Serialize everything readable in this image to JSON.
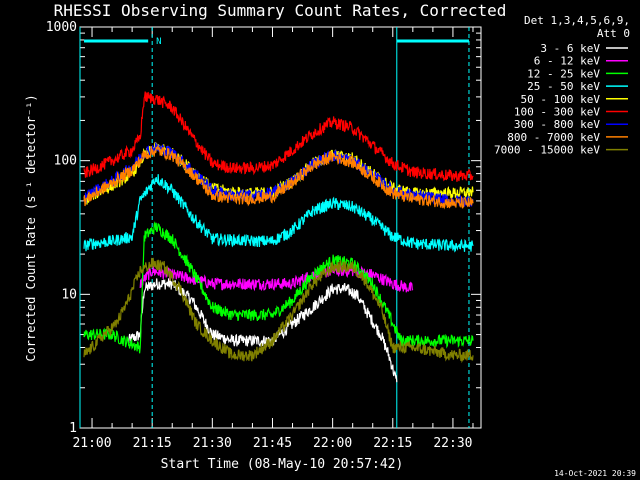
{
  "chart_data": {
    "type": "line",
    "title": "RHESSI Observing Summary Count Rates, Corrected",
    "xlabel": "Start Time (08-May-10 20:57:42)",
    "ylabel": "Corrected Count Rate (s⁻¹ detector⁻¹)",
    "footer": "14-Oct-2021 20:39",
    "y_scale": "log",
    "ylim": [
      1,
      1000
    ],
    "y_ticks": [
      {
        "value": 1,
        "label": "1"
      },
      {
        "value": 10,
        "label": "10"
      },
      {
        "value": 100,
        "label": "100"
      },
      {
        "value": 1000,
        "label": "1000"
      }
    ],
    "xlim": [
      "20:57",
      "22:37"
    ],
    "x_ticks": [
      "21:00",
      "21:15",
      "21:30",
      "21:45",
      "22:00",
      "22:15",
      "22:30"
    ],
    "legend_position": "right",
    "legend_header": [
      "Det 1,3,4,5,6,9,",
      "Att 0"
    ],
    "markers": {
      "cyan_solid": [
        "20:57",
        "22:16"
      ],
      "cyan_dashed": [
        "21:15",
        "22:34"
      ],
      "flag_bars": [
        {
          "from": "20:58",
          "to": "21:14",
          "label": "N"
        },
        {
          "from": "22:16",
          "to": "22:34",
          "label": ""
        }
      ]
    },
    "series": [
      {
        "name": "3 - 6 keV",
        "color": "#ffffff",
        "points": [
          [
            "21:09",
            4.5
          ],
          [
            "21:12",
            5
          ],
          [
            "21:13",
            11
          ],
          [
            "21:16",
            12
          ],
          [
            "21:20",
            12
          ],
          [
            "21:25",
            9
          ],
          [
            "21:30",
            5
          ],
          [
            "21:35",
            4.5
          ],
          [
            "21:40",
            4.5
          ],
          [
            "21:45",
            4.5
          ],
          [
            "21:50",
            6
          ],
          [
            "21:55",
            8
          ],
          [
            "22:00",
            11
          ],
          [
            "22:03",
            11
          ],
          [
            "22:06",
            10
          ],
          [
            "22:09",
            7
          ],
          [
            "22:12",
            5
          ],
          [
            "22:14",
            3.5
          ],
          [
            "22:16",
            2.2
          ]
        ]
      },
      {
        "name": "6 - 12 keV",
        "color": "#ff00ff",
        "points": [
          [
            "21:12",
            12
          ],
          [
            "21:15",
            15
          ],
          [
            "21:20",
            14
          ],
          [
            "21:25",
            13
          ],
          [
            "21:30",
            12
          ],
          [
            "21:35",
            12
          ],
          [
            "21:40",
            12
          ],
          [
            "21:45",
            12
          ],
          [
            "21:50",
            12
          ],
          [
            "21:55",
            14
          ],
          [
            "22:00",
            15
          ],
          [
            "22:05",
            15
          ],
          [
            "22:10",
            14
          ],
          [
            "22:15",
            12
          ],
          [
            "22:20",
            11
          ]
        ]
      },
      {
        "name": "12 - 25 keV",
        "color": "#00ff00",
        "points": [
          [
            "20:58",
            5
          ],
          [
            "21:00",
            5
          ],
          [
            "21:05",
            5
          ],
          [
            "21:08",
            4.5
          ],
          [
            "21:12",
            4
          ],
          [
            "21:13",
            27
          ],
          [
            "21:16",
            32
          ],
          [
            "21:20",
            26
          ],
          [
            "21:25",
            15
          ],
          [
            "21:30",
            8
          ],
          [
            "21:35",
            7
          ],
          [
            "21:40",
            7
          ],
          [
            "21:45",
            7
          ],
          [
            "21:50",
            9
          ],
          [
            "21:55",
            14
          ],
          [
            "22:00",
            18
          ],
          [
            "22:05",
            17
          ],
          [
            "22:10",
            12
          ],
          [
            "22:14",
            7
          ],
          [
            "22:17",
            4.5
          ],
          [
            "22:25",
            4.5
          ],
          [
            "22:35",
            4.5
          ]
        ]
      },
      {
        "name": "25 - 50 keV",
        "color": "#00ffff",
        "points": [
          [
            "20:58",
            23
          ],
          [
            "21:00",
            24
          ],
          [
            "21:05",
            25
          ],
          [
            "21:10",
            27
          ],
          [
            "21:12",
            50
          ],
          [
            "21:16",
            75
          ],
          [
            "21:20",
            60
          ],
          [
            "21:25",
            38
          ],
          [
            "21:30",
            26
          ],
          [
            "21:40",
            25
          ],
          [
            "21:45",
            25
          ],
          [
            "21:50",
            30
          ],
          [
            "21:55",
            42
          ],
          [
            "22:00",
            48
          ],
          [
            "22:05",
            45
          ],
          [
            "22:10",
            36
          ],
          [
            "22:15",
            27
          ],
          [
            "22:20",
            24
          ],
          [
            "22:30",
            23
          ],
          [
            "22:35",
            23
          ]
        ]
      },
      {
        "name": "50 - 100 keV",
        "color": "#ffff00",
        "points": [
          [
            "20:58",
            50
          ],
          [
            "21:00",
            55
          ],
          [
            "21:05",
            65
          ],
          [
            "21:10",
            80
          ],
          [
            "21:13",
            110
          ],
          [
            "21:16",
            125
          ],
          [
            "21:20",
            115
          ],
          [
            "21:25",
            85
          ],
          [
            "21:30",
            62
          ],
          [
            "21:35",
            58
          ],
          [
            "21:40",
            57
          ],
          [
            "21:45",
            58
          ],
          [
            "21:50",
            70
          ],
          [
            "21:55",
            95
          ],
          [
            "22:00",
            110
          ],
          [
            "22:05",
            105
          ],
          [
            "22:10",
            80
          ],
          [
            "22:15",
            62
          ],
          [
            "22:20",
            57
          ],
          [
            "22:30",
            57
          ],
          [
            "22:35",
            58
          ]
        ]
      },
      {
        "name": "100 - 300 keV",
        "color": "#ff0000",
        "points": [
          [
            "20:58",
            80
          ],
          [
            "21:00",
            85
          ],
          [
            "21:05",
            100
          ],
          [
            "21:10",
            120
          ],
          [
            "21:12",
            150
          ],
          [
            "21:13",
            300
          ],
          [
            "21:16",
            290
          ],
          [
            "21:20",
            250
          ],
          [
            "21:25",
            150
          ],
          [
            "21:30",
            95
          ],
          [
            "21:35",
            88
          ],
          [
            "21:40",
            88
          ],
          [
            "21:45",
            92
          ],
          [
            "21:50",
            120
          ],
          [
            "21:55",
            160
          ],
          [
            "22:00",
            195
          ],
          [
            "22:05",
            175
          ],
          [
            "22:10",
            130
          ],
          [
            "22:15",
            95
          ],
          [
            "22:20",
            82
          ],
          [
            "22:30",
            77
          ],
          [
            "22:35",
            77
          ]
        ]
      },
      {
        "name": "300 - 800 keV",
        "color": "#0000ff",
        "points": [
          [
            "20:58",
            52
          ],
          [
            "21:00",
            58
          ],
          [
            "21:05",
            70
          ],
          [
            "21:10",
            90
          ],
          [
            "21:13",
            115
          ],
          [
            "21:16",
            125
          ],
          [
            "21:20",
            115
          ],
          [
            "21:25",
            85
          ],
          [
            "21:30",
            60
          ],
          [
            "21:35",
            55
          ],
          [
            "21:40",
            55
          ],
          [
            "21:45",
            57
          ],
          [
            "21:50",
            70
          ],
          [
            "21:55",
            95
          ],
          [
            "22:00",
            110
          ],
          [
            "22:05",
            100
          ],
          [
            "22:10",
            78
          ],
          [
            "22:15",
            60
          ],
          [
            "22:20",
            55
          ],
          [
            "22:30",
            50
          ],
          [
            "22:35",
            50
          ]
        ]
      },
      {
        "name": "800 - 7000 keV",
        "color": "#ff8000",
        "points": [
          [
            "20:58",
            50
          ],
          [
            "21:00",
            55
          ],
          [
            "21:05",
            68
          ],
          [
            "21:10",
            85
          ],
          [
            "21:13",
            110
          ],
          [
            "21:16",
            120
          ],
          [
            "21:20",
            110
          ],
          [
            "21:25",
            80
          ],
          [
            "21:30",
            55
          ],
          [
            "21:35",
            52
          ],
          [
            "21:40",
            52
          ],
          [
            "21:45",
            54
          ],
          [
            "21:50",
            68
          ],
          [
            "21:55",
            92
          ],
          [
            "22:00",
            108
          ],
          [
            "22:05",
            97
          ],
          [
            "22:10",
            75
          ],
          [
            "22:15",
            57
          ],
          [
            "22:20",
            52
          ],
          [
            "22:30",
            48
          ],
          [
            "22:35",
            48
          ]
        ]
      },
      {
        "name": "7000 - 15000 keV",
        "color": "#808000",
        "points": [
          [
            "20:58",
            3.5
          ],
          [
            "21:00",
            4
          ],
          [
            "21:03",
            5
          ],
          [
            "21:06",
            6
          ],
          [
            "21:09",
            9
          ],
          [
            "21:12",
            15
          ],
          [
            "21:15",
            17
          ],
          [
            "21:18",
            16
          ],
          [
            "21:22",
            11
          ],
          [
            "21:26",
            6
          ],
          [
            "21:30",
            4.5
          ],
          [
            "21:35",
            3.5
          ],
          [
            "21:40",
            3.5
          ],
          [
            "21:45",
            4.5
          ],
          [
            "21:50",
            7
          ],
          [
            "21:55",
            12
          ],
          [
            "22:00",
            16
          ],
          [
            "22:05",
            16
          ],
          [
            "22:08",
            13
          ],
          [
            "22:12",
            8
          ],
          [
            "22:15",
            4
          ],
          [
            "22:20",
            4
          ],
          [
            "22:30",
            3.5
          ],
          [
            "22:35",
            3.5
          ]
        ]
      }
    ]
  }
}
